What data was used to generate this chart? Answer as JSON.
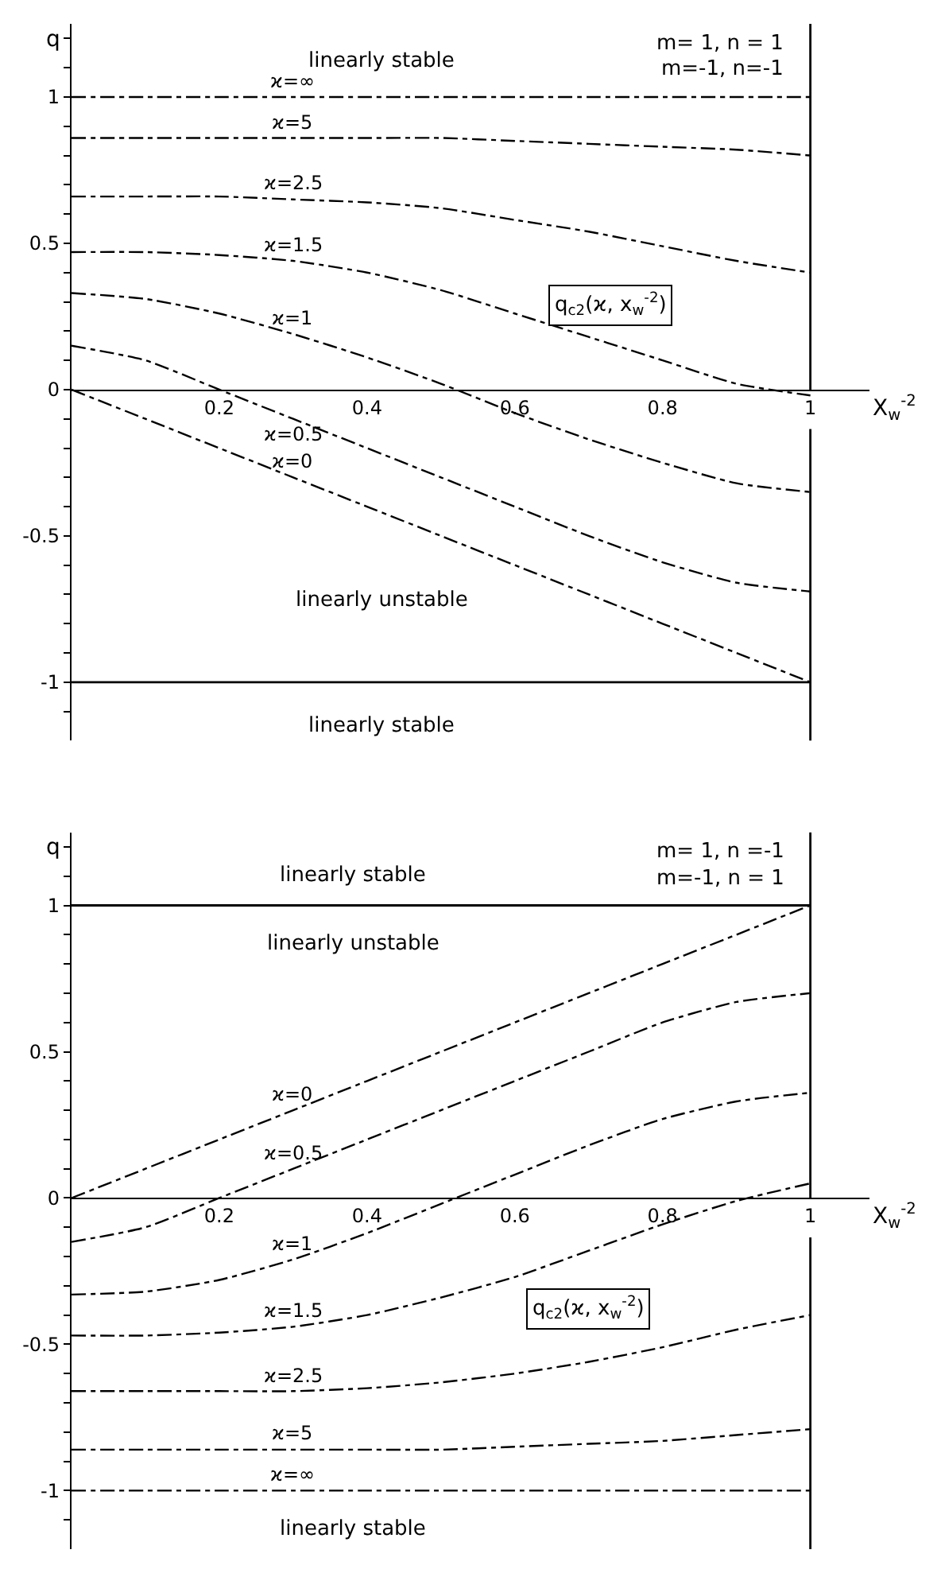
{
  "chart_data": [
    {
      "type": "line",
      "xlabel": "X$_{w}$$^{-2}$",
      "ylabel": "q",
      "legend": false,
      "marker": "none",
      "line_style": "dashed",
      "x": [
        0,
        0.1,
        0.2,
        0.3,
        0.4,
        0.5,
        0.6,
        0.7,
        0.8,
        0.9,
        1
      ],
      "xlim": [
        0,
        1.08
      ],
      "ylim": [
        -1.2,
        1.25
      ],
      "xticks": [
        0.2,
        0.4,
        0.6,
        0.8,
        1
      ],
      "yticks": [
        {
          "value": -1.1,
          "label": null
        },
        -1,
        {
          "value": -0.9,
          "label": null
        },
        {
          "value": -0.8,
          "label": null
        },
        {
          "value": -0.7,
          "label": null
        },
        {
          "value": -0.6,
          "label": null
        },
        -0.5,
        {
          "value": -0.4,
          "label": null
        },
        {
          "value": -0.3,
          "label": null
        },
        {
          "value": -0.2,
          "label": null
        },
        {
          "value": -0.1,
          "label": null
        },
        0,
        {
          "value": 0.1,
          "label": null
        },
        {
          "value": 0.2,
          "label": null
        },
        {
          "value": 0.3,
          "label": null
        },
        {
          "value": 0.4,
          "label": null
        },
        0.5,
        {
          "value": 0.6,
          "label": null
        },
        {
          "value": 0.7,
          "label": null
        },
        {
          "value": 0.8,
          "label": null
        },
        {
          "value": 0.9,
          "label": null
        },
        1,
        {
          "value": 1.1,
          "label": null
        },
        {
          "value": 1.2,
          "label": null
        }
      ],
      "series": [
        {
          "name": "ϰ=∞",
          "color": "#000000",
          "values": [
            1,
            1,
            1,
            1,
            1,
            1,
            1,
            1,
            1,
            1,
            1
          ]
        },
        {
          "name": "ϰ=5",
          "color": "#000000",
          "values": [
            0.86,
            0.86,
            0.86,
            0.86,
            0.86,
            0.86,
            0.85,
            0.84,
            0.83,
            0.82,
            0.8
          ]
        },
        {
          "name": "ϰ=2.5",
          "color": "#000000",
          "values": [
            0.66,
            0.66,
            0.66,
            0.65,
            0.64,
            0.62,
            0.58,
            0.54,
            0.49,
            0.44,
            0.4
          ]
        },
        {
          "name": "ϰ=1.5",
          "color": "#000000",
          "values": [
            0.47,
            0.47,
            0.46,
            0.44,
            0.4,
            0.34,
            0.26,
            0.18,
            0.1,
            0.02,
            -0.02
          ]
        },
        {
          "name": "ϰ=1",
          "color": "#000000",
          "values": [
            0.33,
            0.31,
            0.26,
            0.19,
            0.11,
            0.02,
            -0.08,
            -0.17,
            -0.25,
            -0.32,
            -0.35
          ]
        },
        {
          "name": "ϰ=0.5",
          "color": "#000000",
          "values": [
            0.15,
            0.1,
            0.0,
            -0.1,
            -0.2,
            -0.3,
            -0.4,
            -0.5,
            -0.59,
            -0.66,
            -0.69
          ]
        },
        {
          "name": "ϰ=0",
          "color": "#000000",
          "values": [
            0,
            -0.1,
            -0.2,
            -0.3,
            -0.4,
            -0.5,
            -0.6,
            -0.7,
            -0.8,
            -0.9,
            -1
          ]
        }
      ],
      "ref_lines": [
        {
          "axis": "y",
          "value": -1,
          "color": "#000000",
          "line_style": "solid"
        },
        {
          "axis": "x",
          "value": 1,
          "color": "#000000",
          "line_style": "solid"
        }
      ],
      "annotations": [
        "m= 1, n = 1",
        "m=-1, n=-1",
        "linearly stable",
        "linearly unstable",
        "linearly stable",
        "q$_{c2}$(ϰ, x$_{w}$$^{-2}$)"
      ]
    },
    {
      "type": "line",
      "xlabel": "X$_{w}$$^{-2}$",
      "ylabel": "q",
      "legend": false,
      "marker": "none",
      "line_style": "dashed",
      "x": [
        0,
        0.1,
        0.2,
        0.3,
        0.4,
        0.5,
        0.6,
        0.7,
        0.8,
        0.9,
        1
      ],
      "xlim": [
        0,
        1.08
      ],
      "ylim": [
        -1.2,
        1.25
      ],
      "xticks": [
        0.2,
        0.4,
        0.6,
        0.8,
        1
      ],
      "yticks": [
        {
          "value": -1.1,
          "label": null
        },
        -1,
        {
          "value": -0.9,
          "label": null
        },
        {
          "value": -0.8,
          "label": null
        },
        {
          "value": -0.7,
          "label": null
        },
        {
          "value": -0.6,
          "label": null
        },
        -0.5,
        {
          "value": -0.4,
          "label": null
        },
        {
          "value": -0.3,
          "label": null
        },
        {
          "value": -0.2,
          "label": null
        },
        {
          "value": -0.1,
          "label": null
        },
        0,
        {
          "value": 0.1,
          "label": null
        },
        {
          "value": 0.2,
          "label": null
        },
        {
          "value": 0.3,
          "label": null
        },
        {
          "value": 0.4,
          "label": null
        },
        0.5,
        {
          "value": 0.6,
          "label": null
        },
        {
          "value": 0.7,
          "label": null
        },
        {
          "value": 0.8,
          "label": null
        },
        {
          "value": 0.9,
          "label": null
        },
        1,
        {
          "value": 1.1,
          "label": null
        },
        {
          "value": 1.2,
          "label": null
        }
      ],
      "series": [
        {
          "name": "ϰ=0",
          "color": "#000000",
          "values": [
            0,
            0.1,
            0.2,
            0.3,
            0.4,
            0.5,
            0.6,
            0.7,
            0.8,
            0.9,
            1
          ]
        },
        {
          "name": "ϰ=0.5",
          "color": "#000000",
          "values": [
            -0.15,
            -0.1,
            0.0,
            0.1,
            0.2,
            0.3,
            0.4,
            0.5,
            0.6,
            0.67,
            0.7
          ]
        },
        {
          "name": "ϰ=1",
          "color": "#000000",
          "values": [
            -0.33,
            -0.32,
            -0.28,
            -0.21,
            -0.12,
            -0.02,
            0.08,
            0.18,
            0.27,
            0.33,
            0.36
          ]
        },
        {
          "name": "ϰ=1.5",
          "color": "#000000",
          "values": [
            -0.47,
            -0.47,
            -0.46,
            -0.44,
            -0.4,
            -0.34,
            -0.27,
            -0.18,
            -0.09,
            -0.01,
            0.05
          ]
        },
        {
          "name": "ϰ=2.5",
          "color": "#000000",
          "values": [
            -0.66,
            -0.66,
            -0.66,
            -0.66,
            -0.65,
            -0.63,
            -0.6,
            -0.56,
            -0.51,
            -0.45,
            -0.4
          ]
        },
        {
          "name": "ϰ=5",
          "color": "#000000",
          "values": [
            -0.86,
            -0.86,
            -0.86,
            -0.86,
            -0.86,
            -0.86,
            -0.85,
            -0.84,
            -0.83,
            -0.81,
            -0.79
          ]
        },
        {
          "name": "ϰ=∞",
          "color": "#000000",
          "values": [
            -1,
            -1,
            -1,
            -1,
            -1,
            -1,
            -1,
            -1,
            -1,
            -1,
            -1
          ]
        }
      ],
      "ref_lines": [
        {
          "axis": "y",
          "value": 1,
          "color": "#000000",
          "line_style": "solid"
        },
        {
          "axis": "x",
          "value": 1,
          "color": "#000000",
          "line_style": "solid"
        }
      ],
      "annotations": [
        "m= 1, n =-1",
        "m=-1, n = 1",
        "linearly stable",
        "linearly unstable",
        "linearly stable",
        "q$_{c2}$(ϰ, x$_{w}$$^{-2}$)"
      ]
    }
  ]
}
